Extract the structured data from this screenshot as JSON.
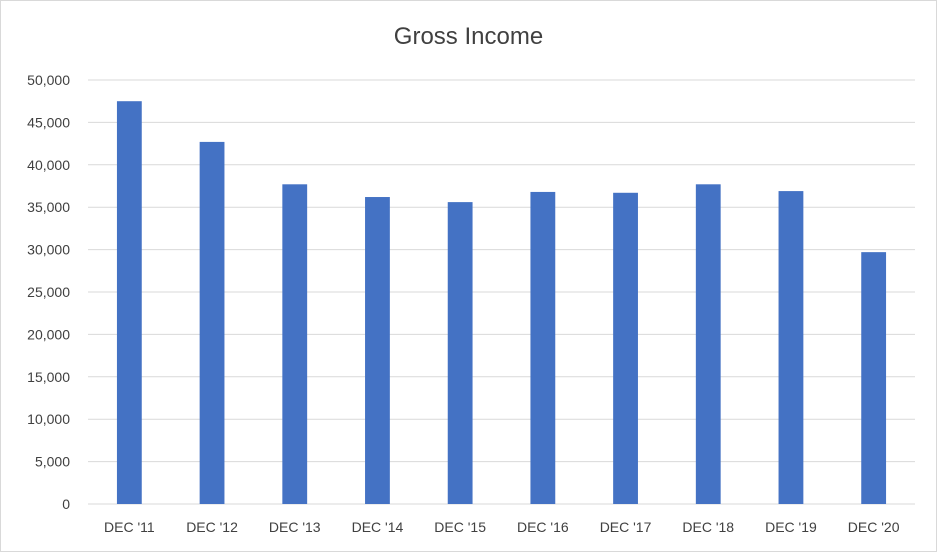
{
  "chart_data": {
    "type": "bar",
    "title": "Gross Income",
    "xlabel": "",
    "ylabel": "",
    "categories": [
      "DEC '11",
      "DEC '12",
      "DEC '13",
      "DEC '14",
      "DEC '15",
      "DEC '16",
      "DEC '17",
      "DEC '18",
      "DEC '19",
      "DEC '20"
    ],
    "values": [
      47500,
      42700,
      37700,
      36200,
      35600,
      36800,
      36700,
      37700,
      36900,
      29700
    ],
    "ylim": [
      0,
      50000
    ],
    "yticks": [
      0,
      5000,
      10000,
      15000,
      20000,
      25000,
      30000,
      35000,
      40000,
      45000,
      50000
    ],
    "ytick_labels": [
      "0",
      "5,000",
      "10,000",
      "15,000",
      "20,000",
      "25,000",
      "30,000",
      "35,000",
      "40,000",
      "45,000",
      "50,000"
    ],
    "grid": true,
    "legend": "none",
    "colors": {
      "bar": "#4472c4",
      "grid": "#d9d9d9",
      "text": "#404040"
    }
  }
}
